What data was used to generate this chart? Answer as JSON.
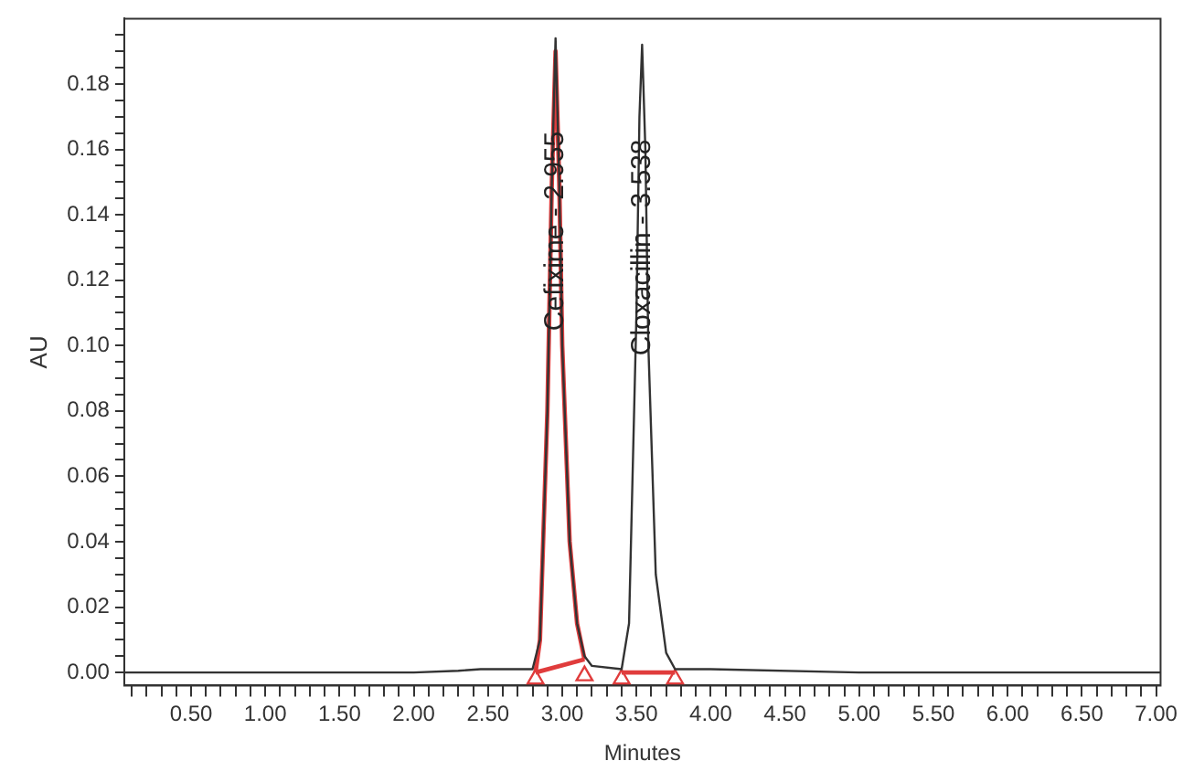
{
  "chart_data": {
    "type": "line",
    "xlabel": "Minutes",
    "ylabel": "AU",
    "xlim": [
      0.05,
      7.03
    ],
    "ylim": [
      -0.004,
      0.2
    ],
    "xticks": [
      {
        "value": 0.1,
        "label": null
      },
      {
        "value": 0.2,
        "label": null
      },
      {
        "value": 0.3,
        "label": null
      },
      {
        "value": 0.4,
        "label": null
      },
      {
        "value": 0.5,
        "label": "0.50"
      },
      {
        "value": 0.6,
        "label": null
      },
      {
        "value": 0.7,
        "label": null
      },
      {
        "value": 0.8,
        "label": null
      },
      {
        "value": 0.9,
        "label": null
      },
      {
        "value": 1.0,
        "label": "1.00"
      },
      {
        "value": 1.1,
        "label": null
      },
      {
        "value": 1.2,
        "label": null
      },
      {
        "value": 1.3,
        "label": null
      },
      {
        "value": 1.4,
        "label": null
      },
      {
        "value": 1.5,
        "label": "1.50"
      },
      {
        "value": 1.6,
        "label": null
      },
      {
        "value": 1.7,
        "label": null
      },
      {
        "value": 1.8,
        "label": null
      },
      {
        "value": 1.9,
        "label": null
      },
      {
        "value": 2.0,
        "label": "2.00"
      },
      {
        "value": 2.1,
        "label": null
      },
      {
        "value": 2.2,
        "label": null
      },
      {
        "value": 2.3,
        "label": null
      },
      {
        "value": 2.4,
        "label": null
      },
      {
        "value": 2.5,
        "label": "2.50"
      },
      {
        "value": 2.6,
        "label": null
      },
      {
        "value": 2.7,
        "label": null
      },
      {
        "value": 2.8,
        "label": null
      },
      {
        "value": 2.9,
        "label": null
      },
      {
        "value": 3.0,
        "label": "3.00"
      },
      {
        "value": 3.1,
        "label": null
      },
      {
        "value": 3.2,
        "label": null
      },
      {
        "value": 3.3,
        "label": null
      },
      {
        "value": 3.4,
        "label": null
      },
      {
        "value": 3.5,
        "label": "3.50"
      },
      {
        "value": 3.6,
        "label": null
      },
      {
        "value": 3.7,
        "label": null
      },
      {
        "value": 3.8,
        "label": null
      },
      {
        "value": 3.9,
        "label": null
      },
      {
        "value": 4.0,
        "label": "4.00"
      },
      {
        "value": 4.1,
        "label": null
      },
      {
        "value": 4.2,
        "label": null
      },
      {
        "value": 4.3,
        "label": null
      },
      {
        "value": 4.4,
        "label": null
      },
      {
        "value": 4.5,
        "label": "4.50"
      },
      {
        "value": 4.6,
        "label": null
      },
      {
        "value": 4.7,
        "label": null
      },
      {
        "value": 4.8,
        "label": null
      },
      {
        "value": 4.9,
        "label": null
      },
      {
        "value": 5.0,
        "label": "5.00"
      },
      {
        "value": 5.1,
        "label": null
      },
      {
        "value": 5.2,
        "label": null
      },
      {
        "value": 5.3,
        "label": null
      },
      {
        "value": 5.4,
        "label": null
      },
      {
        "value": 5.5,
        "label": "5.50"
      },
      {
        "value": 5.6,
        "label": null
      },
      {
        "value": 5.7,
        "label": null
      },
      {
        "value": 5.8,
        "label": null
      },
      {
        "value": 5.9,
        "label": null
      },
      {
        "value": 6.0,
        "label": "6.00"
      },
      {
        "value": 6.1,
        "label": null
      },
      {
        "value": 6.2,
        "label": null
      },
      {
        "value": 6.3,
        "label": null
      },
      {
        "value": 6.4,
        "label": null
      },
      {
        "value": 6.5,
        "label": "6.50"
      },
      {
        "value": 6.6,
        "label": null
      },
      {
        "value": 6.7,
        "label": null
      },
      {
        "value": 6.8,
        "label": null
      },
      {
        "value": 6.9,
        "label": null
      },
      {
        "value": 7.0,
        "label": "7.00"
      }
    ],
    "yticks": [
      {
        "value": 0,
        "label": "0.00"
      },
      {
        "value": 0.005,
        "label": null
      },
      {
        "value": 0.01,
        "label": null
      },
      {
        "value": 0.015,
        "label": null
      },
      {
        "value": 0.02,
        "label": "0.02"
      },
      {
        "value": 0.025,
        "label": null
      },
      {
        "value": 0.03,
        "label": null
      },
      {
        "value": 0.035,
        "label": null
      },
      {
        "value": 0.04,
        "label": "0.04"
      },
      {
        "value": 0.045,
        "label": null
      },
      {
        "value": 0.05,
        "label": null
      },
      {
        "value": 0.055,
        "label": null
      },
      {
        "value": 0.06,
        "label": "0.06"
      },
      {
        "value": 0.065,
        "label": null
      },
      {
        "value": 0.07,
        "label": null
      },
      {
        "value": 0.075,
        "label": null
      },
      {
        "value": 0.08,
        "label": "0.08"
      },
      {
        "value": 0.085,
        "label": null
      },
      {
        "value": 0.09,
        "label": null
      },
      {
        "value": 0.095,
        "label": null
      },
      {
        "value": 0.1,
        "label": "0.10"
      },
      {
        "value": 0.105,
        "label": null
      },
      {
        "value": 0.11,
        "label": null
      },
      {
        "value": 0.115,
        "label": null
      },
      {
        "value": 0.12,
        "label": "0.12"
      },
      {
        "value": 0.125,
        "label": null
      },
      {
        "value": 0.13,
        "label": null
      },
      {
        "value": 0.135,
        "label": null
      },
      {
        "value": 0.14,
        "label": "0.14"
      },
      {
        "value": 0.145,
        "label": null
      },
      {
        "value": 0.15,
        "label": null
      },
      {
        "value": 0.155,
        "label": null
      },
      {
        "value": 0.16,
        "label": "0.16"
      },
      {
        "value": 0.165,
        "label": null
      },
      {
        "value": 0.17,
        "label": null
      },
      {
        "value": 0.175,
        "label": null
      },
      {
        "value": 0.18,
        "label": "0.18"
      },
      {
        "value": 0.185,
        "label": null
      },
      {
        "value": 0.19,
        "label": null
      },
      {
        "value": 0.195,
        "label": null
      }
    ],
    "grid": false,
    "legend": false,
    "series": [
      {
        "color": "#333333",
        "x": [
          0.05,
          1.0,
          2.0,
          2.3,
          2.45,
          2.8,
          2.85,
          2.9,
          2.93,
          2.955,
          2.98,
          3.0,
          3.05,
          3.1,
          3.15,
          3.2,
          3.4,
          3.45,
          3.5,
          3.52,
          3.538,
          3.56,
          3.58,
          3.63,
          3.7,
          3.76,
          4.0,
          5.0,
          7.03
        ],
        "values": [
          0.0,
          0.0,
          0.0,
          0.0005,
          0.001,
          0.001,
          0.01,
          0.08,
          0.15,
          0.194,
          0.15,
          0.1,
          0.04,
          0.015,
          0.005,
          0.002,
          0.001,
          0.015,
          0.11,
          0.17,
          0.192,
          0.16,
          0.1,
          0.03,
          0.006,
          0.001,
          0.001,
          0.0,
          0.0
        ]
      },
      {
        "color": "#e03c3c",
        "x": [
          2.82,
          2.85,
          2.9,
          2.93,
          2.955,
          2.98,
          3.0,
          3.05,
          3.1,
          3.15
        ],
        "values": [
          0.0,
          0.01,
          0.08,
          0.15,
          0.19,
          0.15,
          0.1,
          0.04,
          0.015,
          0.004
        ]
      },
      {
        "color": "#e03c3c",
        "x": [
          2.82,
          3.15
        ],
        "values": [
          0.0,
          0.004
        ]
      },
      {
        "color": "#e03c3c",
        "x": [
          3.4,
          3.76
        ],
        "values": [
          0.0,
          0.0
        ]
      },
      {
        "type": "scatter",
        "color": "#e03c3c",
        "marker": "triangle",
        "x": [
          2.82,
          3.15,
          3.4,
          3.76
        ],
        "values": [
          -0.002,
          -0.001,
          -0.002,
          -0.002
        ]
      }
    ],
    "annotations": [
      {
        "text": "Cefixime - 2.955",
        "x": 2.955,
        "y": 0.135
      },
      {
        "text": "Cloxacillin - 3.538",
        "x": 3.538,
        "y": 0.13
      }
    ]
  }
}
